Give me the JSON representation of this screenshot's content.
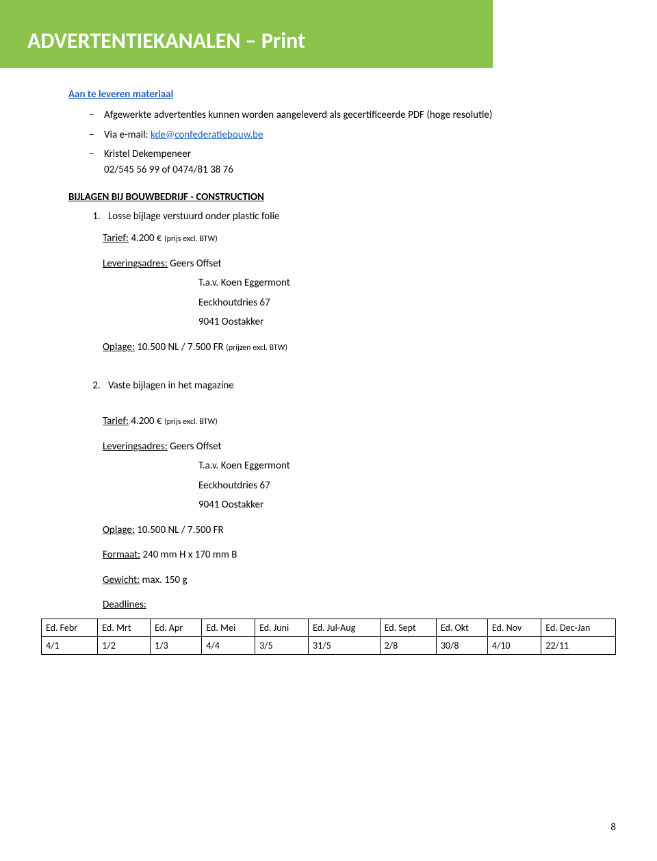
{
  "banner_title": "ADVERTENTIEKANALEN – Print",
  "materiaal": {
    "heading": "Aan te leveren materiaal",
    "items": [
      {
        "text": "Afgewerkte advertenties kunnen worden aangeleverd als gecertificeerde PDF (hoge resolutie)"
      },
      {
        "prefix": "Via e-mail: ",
        "link": "kde@confederatiebouw.be"
      },
      {
        "name": "Kristel Dekempeneer",
        "phone": "02/545 56 99 of 0474/81 38 76"
      }
    ]
  },
  "bijlagen": {
    "heading": "BIJLAGEN BIJ BOUWBEDRIJF - CONSTRUCTION",
    "sections": [
      {
        "num": "1.",
        "title": "Losse bijlage verstuurd onder plastic folie",
        "tarief_label": "Tarief:",
        "tarief_value": "4.200 €",
        "tarief_note": "(prijs excl. BTW)",
        "lever_label": "Leveringsadres:",
        "lever_name": "Geers Offset",
        "tav": "T.a.v. Koen Eggermont",
        "addr1": "Eeckhoutdries 67",
        "addr2": "9041 Oostakker",
        "oplage_label": "Oplage:",
        "oplage_value": "10.500 NL / 7.500 FR",
        "oplage_note": "(prijzen excl. BTW)"
      },
      {
        "num": "2.",
        "title": "Vaste bijlagen in het magazine",
        "tarief_label": "Tarief:",
        "tarief_value": "4.200 €",
        "tarief_note": "(prijs excl. BTW)",
        "lever_label": "Leveringsadres:",
        "lever_name": "Geers Offset",
        "tav": "T.a.v. Koen Eggermont",
        "addr1": "Eeckhoutdries 67",
        "addr2": "9041 Oostakker",
        "oplage_label": "Oplage:",
        "oplage_value": "10.500 NL / 7.500 FR",
        "formaat_label": "Formaat:",
        "formaat_value": "240 mm H x 170 mm B",
        "gewicht_label": "Gewicht:",
        "gewicht_value": "max. 150 g",
        "deadlines_label": "Deadlines:"
      }
    ]
  },
  "deadlines_table": {
    "headers": [
      "Ed. Febr",
      "Ed. Mrt",
      "Ed. Apr",
      "Ed. Mei",
      "Ed. Juni",
      "Ed. Jul-Aug",
      "Ed. Sept",
      "Ed. Okt",
      "Ed. Nov",
      "Ed. Dec-Jan"
    ],
    "row": [
      "4/1",
      "1/2",
      "1/3",
      "4/4",
      "3/5",
      "31/5",
      "2/8",
      "30/8",
      "4/10",
      "22/11"
    ]
  },
  "page_number": "8"
}
